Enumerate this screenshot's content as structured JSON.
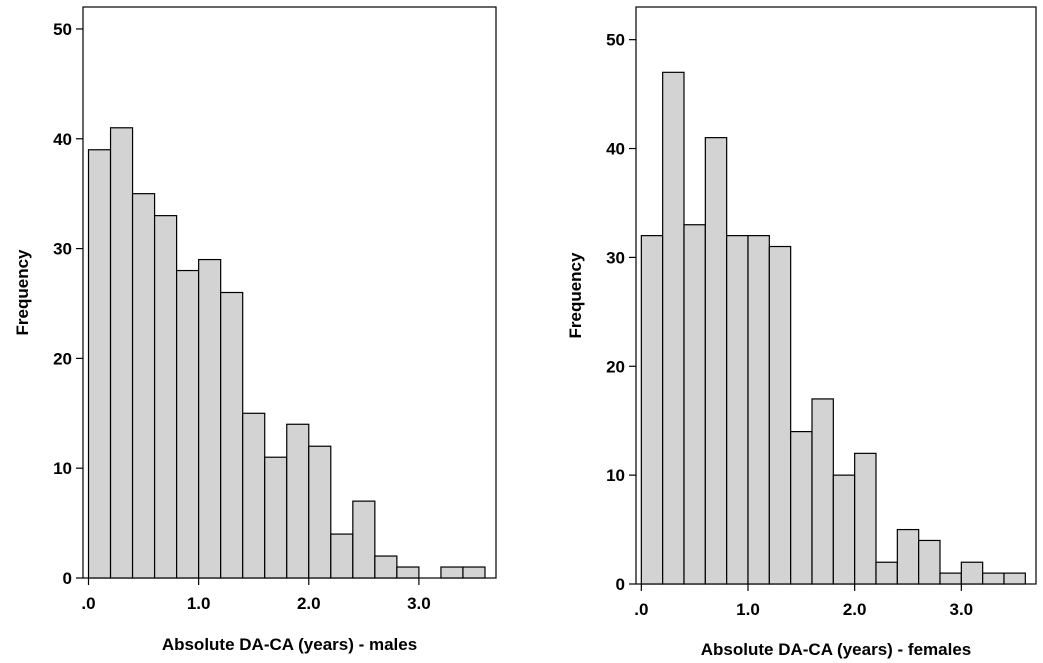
{
  "chart_data": [
    {
      "type": "bar",
      "variant": "histogram",
      "xlabel": "Absolute DA-CA (years) - males",
      "ylabel": "Frequency",
      "bin_width": 0.2,
      "bins_start": 0.0,
      "xlim": [
        -0.05,
        3.7
      ],
      "ylim": [
        0,
        52
      ],
      "x_ticks": [
        0,
        1,
        2,
        3
      ],
      "x_tick_labels": [
        ".0",
        "1.0",
        "2.0",
        "3.0"
      ],
      "y_ticks": [
        0,
        10,
        20,
        30,
        40,
        50
      ],
      "y_tick_labels": [
        "0",
        "10",
        "20",
        "30",
        "40",
        "50"
      ],
      "values": [
        39,
        41,
        35,
        33,
        28,
        29,
        26,
        15,
        11,
        14,
        12,
        4,
        7,
        2,
        1,
        0,
        1,
        1
      ],
      "bar_color": "#d3d3d3",
      "grid": false
    },
    {
      "type": "bar",
      "variant": "histogram",
      "xlabel": "Absolute DA-CA (years) - females",
      "ylabel": "Frequency",
      "bin_width": 0.2,
      "bins_start": 0.0,
      "xlim": [
        -0.05,
        3.7
      ],
      "ylim": [
        0,
        53
      ],
      "x_ticks": [
        0,
        1,
        2,
        3
      ],
      "x_tick_labels": [
        ".0",
        "1.0",
        "2.0",
        "3.0"
      ],
      "y_ticks": [
        0,
        10,
        20,
        30,
        40,
        50
      ],
      "y_tick_labels": [
        "0",
        "10",
        "20",
        "30",
        "40",
        "50"
      ],
      "values": [
        32,
        47,
        33,
        41,
        32,
        32,
        31,
        14,
        17,
        10,
        12,
        2,
        5,
        4,
        1,
        2,
        1,
        1
      ],
      "bar_color": "#d3d3d3",
      "grid": false
    }
  ]
}
